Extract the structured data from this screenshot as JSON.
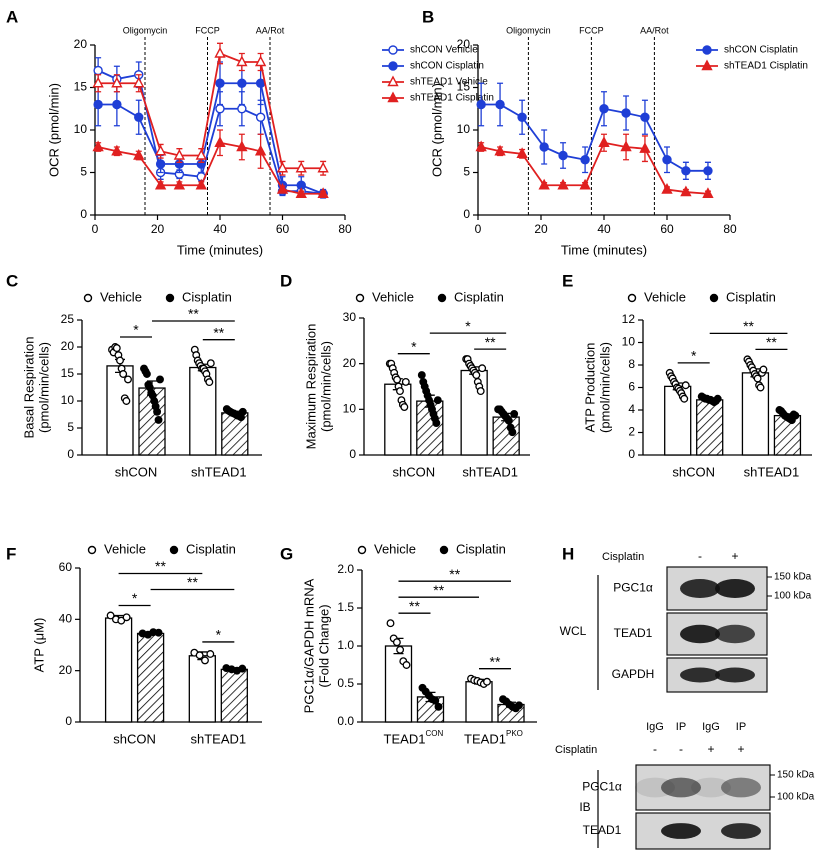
{
  "chart_data": [
    {
      "panel": "A",
      "type": "line",
      "xlabel": "Time (minutes)",
      "ylabel": [
        "OCR (pmol/min)"
      ],
      "xlim": [
        0,
        80
      ],
      "xticks": [
        0,
        20,
        40,
        60,
        80
      ],
      "ylim": [
        0,
        20
      ],
      "yticks": [
        0,
        5,
        10,
        15,
        20
      ],
      "annotations": [
        {
          "label": "Oligomycin",
          "x": 16
        },
        {
          "label": "FCCP",
          "x": 36
        },
        {
          "label": "AA/Rot",
          "x": 56
        }
      ],
      "x": [
        1,
        7,
        14,
        21,
        27,
        34,
        40,
        47,
        53,
        60,
        66,
        73
      ],
      "series": [
        {
          "name": "shCON Vehicle",
          "color": "#1f3fd6",
          "marker": "circle",
          "filled": false,
          "values": [
            17,
            16,
            16.5,
            5,
            4.8,
            4.5,
            12.5,
            12.5,
            11.5,
            2.8,
            2.8,
            2.5
          ],
          "errors": [
            1.5,
            1.5,
            1.5,
            0.8,
            0.5,
            0.5,
            2,
            2,
            2,
            0.5,
            0.5,
            0.4
          ]
        },
        {
          "name": "shCON Cisplatin",
          "color": "#1f3fd6",
          "marker": "circle",
          "filled": true,
          "values": [
            13,
            13,
            11.5,
            6,
            6,
            6,
            15.5,
            15.5,
            15.5,
            3.5,
            3.5,
            2.5
          ],
          "errors": [
            2.5,
            2.5,
            2,
            1,
            1,
            1,
            2.5,
            2.5,
            2.5,
            1,
            1,
            0.5
          ]
        },
        {
          "name": "shTEAD1 Vehicle",
          "color": "#e02020",
          "marker": "triangle",
          "filled": false,
          "values": [
            15.5,
            15.5,
            15.5,
            7.5,
            7,
            7,
            19,
            18,
            18,
            5.5,
            5.5,
            5.5
          ],
          "errors": [
            1,
            1,
            1,
            0.8,
            0.8,
            0.8,
            1.2,
            1,
            1,
            0.8,
            0.8,
            0.8
          ]
        },
        {
          "name": "shTEAD1 Cisplatin",
          "color": "#e02020",
          "marker": "triangle",
          "filled": true,
          "values": [
            8,
            7.5,
            7,
            3.5,
            3.5,
            3.5,
            8.5,
            8,
            7.5,
            3,
            2.5,
            2.5
          ],
          "errors": [
            0.5,
            0.5,
            0.5,
            0.4,
            0.4,
            0.4,
            1.5,
            1.5,
            2,
            0.4,
            0.3,
            0.3
          ]
        }
      ]
    },
    {
      "panel": "B",
      "type": "line",
      "xlabel": "Time (minutes)",
      "ylabel": [
        "OCR (pmol/min)"
      ],
      "xlim": [
        0,
        80
      ],
      "xticks": [
        0,
        20,
        40,
        60,
        80
      ],
      "ylim": [
        0,
        20
      ],
      "yticks": [
        0,
        5,
        10,
        15,
        20
      ],
      "annotations": [
        {
          "label": "Oligomycin",
          "x": 16
        },
        {
          "label": "FCCP",
          "x": 36
        },
        {
          "label": "AA/Rot",
          "x": 56
        }
      ],
      "x": [
        1,
        7,
        14,
        21,
        27,
        34,
        40,
        47,
        53,
        60,
        66,
        73
      ],
      "series": [
        {
          "name": "shCON Cisplatin",
          "color": "#1f3fd6",
          "marker": "circle",
          "filled": true,
          "values": [
            13,
            13,
            11.5,
            8,
            7,
            6.5,
            12.5,
            12,
            11.5,
            6.5,
            5.2,
            5.2
          ],
          "errors": [
            2.5,
            2.5,
            2,
            2,
            1.5,
            1.5,
            2,
            2,
            2,
            1.5,
            1,
            1
          ]
        },
        {
          "name": "shTEAD1 Cisplatin",
          "color": "#e02020",
          "marker": "triangle",
          "filled": true,
          "values": [
            8,
            7.5,
            7.2,
            3.5,
            3.5,
            3.5,
            8.5,
            8,
            7.8,
            3,
            2.7,
            2.5
          ],
          "errors": [
            0.5,
            0.5,
            0.5,
            0.3,
            0.3,
            0.3,
            1,
            1.5,
            1.5,
            0.3,
            0.3,
            0.3
          ]
        }
      ]
    },
    {
      "panel": "C",
      "type": "bar",
      "ylabel": [
        "Basal Respiration",
        "(pmol/min/cells)"
      ],
      "ylim": [
        0,
        25
      ],
      "yticks": [
        0,
        5,
        10,
        15,
        20,
        25
      ],
      "categories": [
        "shCON",
        "shTEAD1"
      ],
      "series": [
        {
          "name": "Vehicle",
          "filled": false,
          "pattern": "none",
          "values": [
            16.5,
            16.2
          ],
          "errors": [
            1.2,
            0.6
          ],
          "points": [
            [
              19.5,
              19,
              20,
              19.8,
              18.5,
              17.5,
              16,
              15,
              10.5,
              10,
              14
            ],
            [
              19.5,
              18.5,
              17.5,
              17,
              16.5,
              16,
              16,
              15.5,
              15,
              14,
              13.5,
              17
            ]
          ]
        },
        {
          "name": "Cisplatin",
          "filled": true,
          "pattern": "hatch",
          "values": [
            12.4,
            7.8
          ],
          "errors": [
            1.3,
            0.3
          ],
          "points": [
            [
              16,
              15.5,
              15,
              13,
              12.5,
              11.5,
              11,
              10,
              9,
              8,
              6.5,
              14
            ],
            [
              8.5,
              8.2,
              8,
              7.8,
              7.7,
              7.5,
              7.3,
              7.2,
              7,
              8
            ]
          ]
        }
      ],
      "brackets": [
        {
          "label": "*",
          "bars": [
            0,
            1
          ]
        },
        {
          "label": "**",
          "bars": [
            2,
            3
          ]
        },
        {
          "label": "**",
          "bars": [
            1,
            3
          ]
        }
      ]
    },
    {
      "panel": "D",
      "type": "bar",
      "ylabel": [
        "Maximum Respiration",
        "(pmol/min/cells)"
      ],
      "ylim": [
        0,
        30
      ],
      "yticks": [
        0,
        10,
        20,
        30
      ],
      "categories": [
        "shCON",
        "shTEAD1"
      ],
      "series": [
        {
          "name": "Vehicle",
          "filled": false,
          "pattern": "none",
          "values": [
            15.5,
            18.5
          ],
          "errors": [
            1.2,
            0.8
          ],
          "points": [
            [
              20,
              20,
              19,
              18,
              17,
              16.5,
              15,
              14,
              12,
              11,
              10.5,
              16
            ],
            [
              21,
              21,
              20,
              19.5,
              19,
              18.5,
              18,
              17.5,
              16,
              15,
              14,
              19
            ]
          ]
        },
        {
          "name": "Cisplatin",
          "filled": true,
          "pattern": "hatch",
          "values": [
            11.8,
            8.3
          ],
          "errors": [
            1.3,
            0.8
          ],
          "points": [
            [
              17.5,
              16,
              15,
              14,
              13,
              12,
              11,
              10,
              9,
              8,
              7,
              12
            ],
            [
              10,
              10,
              9.5,
              9,
              8.5,
              8,
              7.5,
              6,
              5,
              9
            ]
          ]
        }
      ],
      "brackets": [
        {
          "label": "*",
          "bars": [
            0,
            1
          ]
        },
        {
          "label": "**",
          "bars": [
            2,
            3
          ]
        },
        {
          "label": "*",
          "bars": [
            1,
            3
          ]
        }
      ]
    },
    {
      "panel": "E",
      "type": "bar",
      "ylabel": [
        "ATP Production",
        "(pmol/min/cells)"
      ],
      "ylim": [
        0,
        12
      ],
      "yticks": [
        0,
        2,
        4,
        6,
        8,
        10,
        12
      ],
      "categories": [
        "shCON",
        "shTEAD1"
      ],
      "series": [
        {
          "name": "Vehicle",
          "filled": false,
          "pattern": "none",
          "values": [
            6.1,
            7.3
          ],
          "errors": [
            0.3,
            0.35
          ],
          "points": [
            [
              7.3,
              7,
              6.8,
              6.5,
              6.3,
              6,
              5.9,
              5.7,
              5.5,
              5.2,
              5,
              6.2
            ],
            [
              8.5,
              8.3,
              8,
              7.8,
              7.5,
              7.2,
              7,
              6.8,
              6.2,
              6,
              7.3,
              7.6
            ]
          ]
        },
        {
          "name": "Cisplatin",
          "filled": true,
          "pattern": "hatch",
          "values": [
            4.9,
            3.5
          ],
          "errors": [
            0.1,
            0.15
          ],
          "points": [
            [
              5.2,
              5.1,
              5,
              5,
              4.9,
              4.9,
              4.8,
              4.7,
              4.8,
              5
            ],
            [
              4,
              3.9,
              3.7,
              3.5,
              3.4,
              3.3,
              3.2,
              3.1,
              3.6,
              3.5
            ]
          ]
        }
      ],
      "brackets": [
        {
          "label": "*",
          "bars": [
            0,
            1
          ]
        },
        {
          "label": "**",
          "bars": [
            2,
            3
          ]
        },
        {
          "label": "**",
          "bars": [
            1,
            3
          ]
        }
      ]
    },
    {
      "panel": "F",
      "type": "bar",
      "ylabel": [
        "ATP (μM)"
      ],
      "ylim": [
        0,
        60
      ],
      "yticks": [
        0,
        20,
        40,
        60
      ],
      "categories": [
        "shCON",
        "shTEAD1"
      ],
      "series": [
        {
          "name": "Vehicle",
          "filled": false,
          "pattern": "none",
          "values": [
            40.5,
            25.8
          ],
          "errors": [
            1,
            1.5
          ],
          "points": [
            [
              41.5,
              40,
              39.5,
              40.8
            ],
            [
              27,
              26,
              24,
              26.5
            ]
          ]
        },
        {
          "name": "Cisplatin",
          "filled": true,
          "pattern": "hatch",
          "values": [
            34.5,
            20.5
          ],
          "errors": [
            0.4,
            0.6
          ],
          "points": [
            [
              34.5,
              34,
              35,
              34.8
            ],
            [
              21,
              20.5,
              20,
              20.8
            ]
          ]
        }
      ],
      "brackets": [
        {
          "label": "*",
          "bars": [
            0,
            1
          ]
        },
        {
          "label": "*",
          "bars": [
            2,
            3
          ]
        },
        {
          "label": "**",
          "bars": [
            1,
            3
          ]
        },
        {
          "label": "**",
          "bars": [
            0,
            2
          ]
        }
      ]
    },
    {
      "panel": "G",
      "type": "bar",
      "ylabel": [
        "PGC1α/GAPDH mRNA",
        "(Fold Change)"
      ],
      "ylim": [
        0,
        2
      ],
      "yticks": [
        {
          "value": 0,
          "label": "0.0"
        },
        0.5,
        {
          "value": 1,
          "label": "1.0"
        },
        1.5,
        {
          "value": 2,
          "label": "2.0"
        }
      ],
      "categories": [
        "TEAD1",
        "TEAD1"
      ],
      "category_superscripts": [
        "CON",
        "PKO"
      ],
      "series": [
        {
          "name": "Vehicle",
          "filled": false,
          "pattern": "none",
          "values": [
            1.0,
            0.53
          ],
          "errors": [
            0.1,
            0.03
          ],
          "points": [
            [
              1.3,
              1.1,
              1.05,
              0.95,
              0.8,
              0.75
            ],
            [
              0.57,
              0.55,
              0.54,
              0.52,
              0.5,
              0.53
            ]
          ]
        },
        {
          "name": "Cisplatin",
          "filled": true,
          "pattern": "hatch",
          "values": [
            0.33,
            0.23
          ],
          "errors": [
            0.06,
            0.03
          ],
          "points": [
            [
              0.45,
              0.4,
              0.35,
              0.3,
              0.28,
              0.2
            ],
            [
              0.3,
              0.27,
              0.23,
              0.2,
              0.18,
              0.22
            ]
          ]
        }
      ],
      "brackets": [
        {
          "label": "**",
          "bars": [
            0,
            1
          ]
        },
        {
          "label": "**",
          "bars": [
            2,
            3
          ]
        },
        {
          "label": "**",
          "bars": [
            0,
            2
          ]
        },
        {
          "label": "**",
          "bars": [
            0,
            3
          ]
        }
      ]
    }
  ],
  "blot": {
    "panel": "H",
    "wcl": {
      "treatment_label": "Cisplatin",
      "lanes": [
        "-",
        "+"
      ],
      "group_label": "WCL",
      "rows": [
        "PGC1α",
        "TEAD1",
        "GAPDH"
      ],
      "markers": [
        "150 kDa",
        "100 kDa"
      ]
    },
    "ip": {
      "lane_groups": [
        "IgG",
        "IP",
        "IgG",
        "IP"
      ],
      "treatment_label": "Cisplatin",
      "lanes": [
        "-",
        "-",
        "+",
        "+"
      ],
      "group_label": "IB",
      "rows": [
        "PGC1α",
        "TEAD1"
      ],
      "markers": [
        "150 kDa",
        "100 kDa"
      ]
    }
  }
}
